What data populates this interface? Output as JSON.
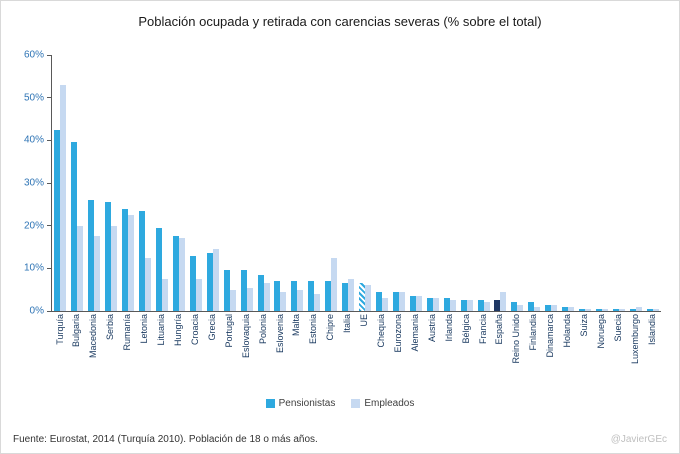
{
  "title": "Población ocupada y retirada con carencias severas (% sobre el total)",
  "footer": {
    "source": "Fuente: Eurostat, 2014 (Turquía 2010). Población de 18 o más años.",
    "credit": "@JavierGEc"
  },
  "colors": {
    "pensionistas": "#2ea9df",
    "empleados": "#c6d9f1",
    "espana_highlight": "#1f3864",
    "axis": "#595959",
    "ytick_text": "#2e74b5",
    "xtick_text": "#17375e"
  },
  "chart_data": {
    "type": "bar",
    "title": "Población ocupada y retirada con carencias severas (% sobre el total)",
    "xlabel": "",
    "ylabel": "",
    "ylim": [
      0,
      60
    ],
    "ytick_step": 10,
    "ytick_suffix": "%",
    "grid": false,
    "legend_position": "bottom",
    "categories": [
      "Turquía",
      "Bulgaria",
      "Macedonia",
      "Serbia",
      "Rumanía",
      "Letonia",
      "Lituania",
      "Hungría",
      "Croacia",
      "Grecia",
      "Portugal",
      "Eslovaquia",
      "Polonia",
      "Eslovenia",
      "Malta",
      "Estonia",
      "Chipre",
      "Italia",
      "UE",
      "Chequia",
      "Eurozona",
      "Alemania",
      "Austria",
      "Irlanda",
      "Bélgica",
      "Francia",
      "España",
      "Reino Unido",
      "Finlandia",
      "Dinamarca",
      "Holanda",
      "Suiza",
      "Noruega",
      "Suecia",
      "Luxemburgo",
      "Islandia"
    ],
    "series": [
      {
        "name": "Pensionistas",
        "color": "#2ea9df",
        "values": [
          42.5,
          39.5,
          26,
          25.5,
          24,
          23.5,
          19.5,
          17.5,
          13,
          13.5,
          9.5,
          9.5,
          8.5,
          7,
          7,
          7,
          7,
          6.5,
          6.5,
          4.5,
          4.5,
          3.5,
          3,
          3,
          2.5,
          2.5,
          2.5,
          2,
          2,
          1.5,
          1,
          0.5,
          0.4,
          0.4,
          0.4,
          0.4
        ]
      },
      {
        "name": "Empleados",
        "color": "#c6d9f1",
        "values": [
          53,
          20,
          17.5,
          20,
          22.5,
          12.5,
          7.5,
          17,
          7.5,
          14.5,
          5,
          5.5,
          6.5,
          4.5,
          5,
          4,
          12.5,
          7.5,
          6,
          3,
          4.5,
          3.5,
          3,
          2.5,
          2.5,
          2,
          4.5,
          1.5,
          1,
          1.5,
          1,
          0.4,
          0.4,
          0.5,
          1,
          0.4
        ]
      }
    ],
    "special_bars": [
      {
        "category": "España",
        "series": "Pensionistas",
        "color": "#1f3864"
      },
      {
        "category": "UE",
        "series": "Pensionistas",
        "pattern": "striped"
      }
    ]
  }
}
